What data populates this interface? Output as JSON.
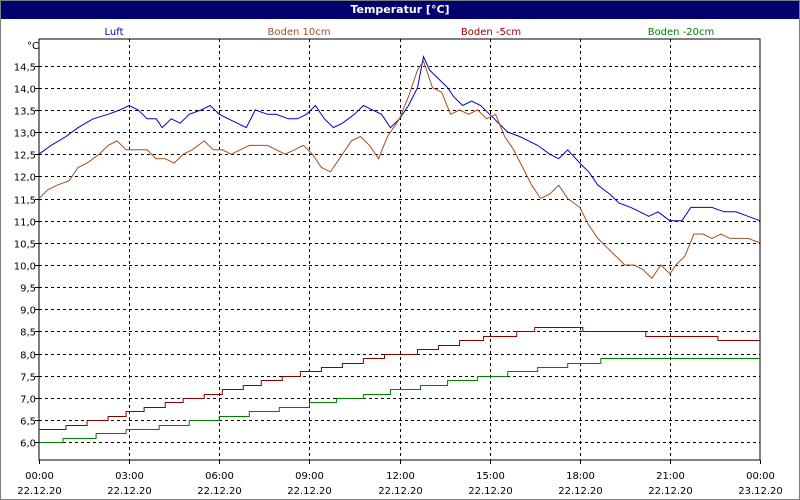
{
  "window": {
    "title": "Temperatur [°C]"
  },
  "chart_data": {
    "type": "line",
    "title": "Temperatur [°C]",
    "ylabel": "°C",
    "ylim": [
      5.6,
      15.1
    ],
    "xlim": [
      0,
      24
    ],
    "grid": true,
    "legend_position": "top",
    "y_ticks": [
      {
        "value": 6.0,
        "label": "6,0"
      },
      {
        "value": 6.5,
        "label": "6,5"
      },
      {
        "value": 7.0,
        "label": "7,0"
      },
      {
        "value": 7.5,
        "label": "7,5"
      },
      {
        "value": 8.0,
        "label": "8,0"
      },
      {
        "value": 8.5,
        "label": "8,5"
      },
      {
        "value": 9.0,
        "label": "9,0"
      },
      {
        "value": 9.5,
        "label": "9,5"
      },
      {
        "value": 10.0,
        "label": "10,0"
      },
      {
        "value": 10.5,
        "label": "10,5"
      },
      {
        "value": 11.0,
        "label": "11,0"
      },
      {
        "value": 11.5,
        "label": "11,5"
      },
      {
        "value": 12.0,
        "label": "12,0"
      },
      {
        "value": 12.5,
        "label": "12,5"
      },
      {
        "value": 13.0,
        "label": "13,0"
      },
      {
        "value": 13.5,
        "label": "13,5"
      },
      {
        "value": 14.0,
        "label": "14,0"
      },
      {
        "value": 14.5,
        "label": "14,5"
      }
    ],
    "x_ticks": [
      {
        "hour": 0,
        "time": "00:00",
        "date": "22.12.20"
      },
      {
        "hour": 3,
        "time": "03:00",
        "date": "22.12.20"
      },
      {
        "hour": 6,
        "time": "06:00",
        "date": "22.12.20"
      },
      {
        "hour": 9,
        "time": "09:00",
        "date": "22.12.20"
      },
      {
        "hour": 12,
        "time": "12:00",
        "date": "22.12.20"
      },
      {
        "hour": 15,
        "time": "15:00",
        "date": "22.12.20"
      },
      {
        "hour": 18,
        "time": "18:00",
        "date": "22.12.20"
      },
      {
        "hour": 21,
        "time": "21:00",
        "date": "22.12.20"
      },
      {
        "hour": 24,
        "time": "00:00",
        "date": "23.12.20"
      }
    ],
    "series": [
      {
        "name": "Luft",
        "color": "#0000cc",
        "points": [
          [
            0,
            12.5
          ],
          [
            0.4,
            12.7
          ],
          [
            0.9,
            12.9
          ],
          [
            1.3,
            13.1
          ],
          [
            1.8,
            13.3
          ],
          [
            2.3,
            13.4
          ],
          [
            2.7,
            13.5
          ],
          [
            3.0,
            13.6
          ],
          [
            3.3,
            13.5
          ],
          [
            3.6,
            13.3
          ],
          [
            3.9,
            13.3
          ],
          [
            4.1,
            13.1
          ],
          [
            4.4,
            13.3
          ],
          [
            4.7,
            13.2
          ],
          [
            5.0,
            13.4
          ],
          [
            5.4,
            13.5
          ],
          [
            5.7,
            13.6
          ],
          [
            6.0,
            13.4
          ],
          [
            6.3,
            13.3
          ],
          [
            6.6,
            13.2
          ],
          [
            6.9,
            13.1
          ],
          [
            7.2,
            13.5
          ],
          [
            7.6,
            13.4
          ],
          [
            7.9,
            13.4
          ],
          [
            8.3,
            13.3
          ],
          [
            8.6,
            13.3
          ],
          [
            8.9,
            13.4
          ],
          [
            9.2,
            13.6
          ],
          [
            9.5,
            13.3
          ],
          [
            9.8,
            13.1
          ],
          [
            10.1,
            13.2
          ],
          [
            10.5,
            13.4
          ],
          [
            10.8,
            13.6
          ],
          [
            11.1,
            13.5
          ],
          [
            11.4,
            13.4
          ],
          [
            11.7,
            13.1
          ],
          [
            12.0,
            13.3
          ],
          [
            12.3,
            13.6
          ],
          [
            12.6,
            14.0
          ],
          [
            12.8,
            14.7
          ],
          [
            13.0,
            14.4
          ],
          [
            13.3,
            14.2
          ],
          [
            13.6,
            14.0
          ],
          [
            13.8,
            13.8
          ],
          [
            14.1,
            13.6
          ],
          [
            14.4,
            13.7
          ],
          [
            14.7,
            13.6
          ],
          [
            15.0,
            13.4
          ],
          [
            15.3,
            13.2
          ],
          [
            15.6,
            13.0
          ],
          [
            16.0,
            12.9
          ],
          [
            16.3,
            12.8
          ],
          [
            16.6,
            12.7
          ],
          [
            17.0,
            12.5
          ],
          [
            17.3,
            12.4
          ],
          [
            17.6,
            12.6
          ],
          [
            18.0,
            12.3
          ],
          [
            18.3,
            12.1
          ],
          [
            18.6,
            11.8
          ],
          [
            19.0,
            11.6
          ],
          [
            19.3,
            11.4
          ],
          [
            19.7,
            11.3
          ],
          [
            20.0,
            11.2
          ],
          [
            20.3,
            11.1
          ],
          [
            20.6,
            11.2
          ],
          [
            21.0,
            11.0
          ],
          [
            21.4,
            11.0
          ],
          [
            21.7,
            11.3
          ],
          [
            22.0,
            11.3
          ],
          [
            22.4,
            11.3
          ],
          [
            22.8,
            11.2
          ],
          [
            23.2,
            11.2
          ],
          [
            23.6,
            11.1
          ],
          [
            24.0,
            11.0
          ]
        ]
      },
      {
        "name": "Boden 10cm",
        "color": "#a0521e",
        "points": [
          [
            0,
            11.5
          ],
          [
            0.3,
            11.7
          ],
          [
            0.6,
            11.8
          ],
          [
            1.0,
            11.9
          ],
          [
            1.3,
            12.2
          ],
          [
            1.6,
            12.3
          ],
          [
            2.0,
            12.5
          ],
          [
            2.3,
            12.7
          ],
          [
            2.6,
            12.8
          ],
          [
            2.9,
            12.6
          ],
          [
            3.3,
            12.6
          ],
          [
            3.6,
            12.6
          ],
          [
            3.9,
            12.4
          ],
          [
            4.2,
            12.4
          ],
          [
            4.5,
            12.3
          ],
          [
            4.8,
            12.5
          ],
          [
            5.1,
            12.6
          ],
          [
            5.5,
            12.8
          ],
          [
            5.8,
            12.6
          ],
          [
            6.1,
            12.6
          ],
          [
            6.4,
            12.5
          ],
          [
            6.7,
            12.6
          ],
          [
            7.0,
            12.7
          ],
          [
            7.3,
            12.7
          ],
          [
            7.6,
            12.7
          ],
          [
            7.9,
            12.6
          ],
          [
            8.2,
            12.5
          ],
          [
            8.5,
            12.6
          ],
          [
            8.8,
            12.7
          ],
          [
            9.1,
            12.5
          ],
          [
            9.4,
            12.2
          ],
          [
            9.7,
            12.1
          ],
          [
            10.0,
            12.4
          ],
          [
            10.4,
            12.8
          ],
          [
            10.7,
            12.9
          ],
          [
            11.0,
            12.7
          ],
          [
            11.3,
            12.4
          ],
          [
            11.6,
            12.9
          ],
          [
            12.0,
            13.3
          ],
          [
            12.3,
            13.8
          ],
          [
            12.6,
            14.4
          ],
          [
            12.8,
            14.6
          ],
          [
            13.1,
            14.0
          ],
          [
            13.4,
            13.9
          ],
          [
            13.7,
            13.4
          ],
          [
            14.0,
            13.5
          ],
          [
            14.3,
            13.4
          ],
          [
            14.6,
            13.5
          ],
          [
            14.9,
            13.3
          ],
          [
            15.2,
            13.4
          ],
          [
            15.5,
            12.9
          ],
          [
            15.8,
            12.6
          ],
          [
            16.1,
            12.2
          ],
          [
            16.4,
            11.8
          ],
          [
            16.7,
            11.5
          ],
          [
            17.0,
            11.6
          ],
          [
            17.3,
            11.8
          ],
          [
            17.6,
            11.5
          ],
          [
            18.0,
            11.3
          ],
          [
            18.3,
            10.9
          ],
          [
            18.6,
            10.6
          ],
          [
            18.9,
            10.4
          ],
          [
            19.2,
            10.2
          ],
          [
            19.5,
            10.0
          ],
          [
            19.8,
            10.0
          ],
          [
            20.1,
            9.9
          ],
          [
            20.4,
            9.7
          ],
          [
            20.7,
            10.0
          ],
          [
            21.0,
            9.8
          ],
          [
            21.2,
            10.0
          ],
          [
            21.5,
            10.2
          ],
          [
            21.8,
            10.7
          ],
          [
            22.1,
            10.7
          ],
          [
            22.4,
            10.6
          ],
          [
            22.7,
            10.7
          ],
          [
            23.0,
            10.6
          ],
          [
            23.3,
            10.6
          ],
          [
            23.6,
            10.6
          ],
          [
            24.0,
            10.5
          ]
        ]
      },
      {
        "name": "Boden -5cm",
        "color": "#8b0000",
        "steps": [
          [
            0,
            6.3
          ],
          [
            0.9,
            6.4
          ],
          [
            1.6,
            6.5
          ],
          [
            2.3,
            6.6
          ],
          [
            2.9,
            6.7
          ],
          [
            3.5,
            6.8
          ],
          [
            4.2,
            6.9
          ],
          [
            4.8,
            7.0
          ],
          [
            5.5,
            7.1
          ],
          [
            6.1,
            7.2
          ],
          [
            6.8,
            7.3
          ],
          [
            7.4,
            7.4
          ],
          [
            8.1,
            7.5
          ],
          [
            8.7,
            7.6
          ],
          [
            9.4,
            7.7
          ],
          [
            10.1,
            7.8
          ],
          [
            10.8,
            7.9
          ],
          [
            11.5,
            8.0
          ],
          [
            12.6,
            8.1
          ],
          [
            13.3,
            8.2
          ],
          [
            14.0,
            8.3
          ],
          [
            14.8,
            8.4
          ],
          [
            15.9,
            8.5
          ],
          [
            16.5,
            8.6
          ],
          [
            18.1,
            8.5
          ],
          [
            20.2,
            8.4
          ],
          [
            22.6,
            8.3
          ],
          [
            24.0,
            8.3
          ]
        ]
      },
      {
        "name": "Boden -20cm",
        "color": "#008000",
        "steps": [
          [
            0,
            6.0
          ],
          [
            0.8,
            6.1
          ],
          [
            1.9,
            6.2
          ],
          [
            2.9,
            6.3
          ],
          [
            4.0,
            6.4
          ],
          [
            5.0,
            6.5
          ],
          [
            6.0,
            6.6
          ],
          [
            7.0,
            6.7
          ],
          [
            8.0,
            6.8
          ],
          [
            9.0,
            6.9
          ],
          [
            9.9,
            7.0
          ],
          [
            10.8,
            7.1
          ],
          [
            11.7,
            7.2
          ],
          [
            12.7,
            7.3
          ],
          [
            13.6,
            7.4
          ],
          [
            14.6,
            7.5
          ],
          [
            15.6,
            7.6
          ],
          [
            16.6,
            7.7
          ],
          [
            17.6,
            7.8
          ],
          [
            18.7,
            7.9
          ],
          [
            24.0,
            7.9
          ]
        ]
      }
    ]
  }
}
